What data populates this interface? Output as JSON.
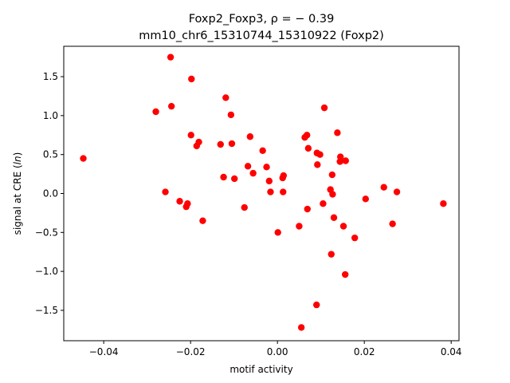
{
  "chart_data": {
    "type": "scatter",
    "title_line1": "Foxp2_Foxp3, ρ = − 0.39",
    "title_line2": "mm10_chr6_15310744_15310922 (Foxp2)",
    "xlabel": "motif activity",
    "ylabel": "signal at CRE (ln)",
    "xlim": [
      -0.0492,
      0.0418
    ],
    "ylim": [
      -1.89,
      1.89
    ],
    "xticks": [
      {
        "value": -0.04,
        "label": "−0.04"
      },
      {
        "value": -0.02,
        "label": "−0.02"
      },
      {
        "value": 0.0,
        "label": "0.00"
      },
      {
        "value": 0.02,
        "label": "0.02"
      },
      {
        "value": 0.04,
        "label": "0.04"
      }
    ],
    "yticks": [
      {
        "value": 1.5,
        "label": "1.5"
      },
      {
        "value": 1.0,
        "label": "1.0"
      },
      {
        "value": 0.5,
        "label": "0.5"
      },
      {
        "value": 0.0,
        "label": "0.0"
      },
      {
        "value": -0.5,
        "label": "−0.5"
      },
      {
        "value": -1.0,
        "label": "−1.0"
      },
      {
        "value": -1.5,
        "label": "−1.5"
      }
    ],
    "grid": false,
    "marker_color": "#ff0000",
    "points": [
      {
        "x": -0.0447,
        "y": 0.45
      },
      {
        "x": -0.028,
        "y": 1.05
      },
      {
        "x": -0.0258,
        "y": 0.02
      },
      {
        "x": -0.0246,
        "y": 1.75
      },
      {
        "x": -0.0244,
        "y": 1.12
      },
      {
        "x": -0.0225,
        "y": -0.1
      },
      {
        "x": -0.021,
        "y": -0.17
      },
      {
        "x": -0.0207,
        "y": -0.13
      },
      {
        "x": -0.0198,
        "y": 1.47
      },
      {
        "x": -0.0199,
        "y": 0.75
      },
      {
        "x": -0.0186,
        "y": 0.61
      },
      {
        "x": -0.0181,
        "y": 0.66
      },
      {
        "x": -0.0172,
        "y": -0.35
      },
      {
        "x": -0.0131,
        "y": 0.63
      },
      {
        "x": -0.0124,
        "y": 0.21
      },
      {
        "x": -0.0119,
        "y": 1.23
      },
      {
        "x": -0.0107,
        "y": 1.01
      },
      {
        "x": -0.0105,
        "y": 0.64
      },
      {
        "x": -0.0099,
        "y": 0.19
      },
      {
        "x": -0.0076,
        "y": -0.18
      },
      {
        "x": -0.0068,
        "y": 0.35
      },
      {
        "x": -0.0063,
        "y": 0.73
      },
      {
        "x": -0.0056,
        "y": 0.26
      },
      {
        "x": -0.0034,
        "y": 0.55
      },
      {
        "x": -0.0025,
        "y": 0.34
      },
      {
        "x": -0.0019,
        "y": 0.16
      },
      {
        "x": -0.0016,
        "y": 0.02
      },
      {
        "x": 0.0001,
        "y": -0.5
      },
      {
        "x": 0.0012,
        "y": 0.2
      },
      {
        "x": 0.0014,
        "y": 0.23
      },
      {
        "x": 0.0013,
        "y": 0.02
      },
      {
        "x": 0.005,
        "y": -0.42
      },
      {
        "x": 0.0055,
        "y": -1.72
      },
      {
        "x": 0.0063,
        "y": 0.72
      },
      {
        "x": 0.0068,
        "y": 0.75
      },
      {
        "x": 0.0069,
        "y": -0.2
      },
      {
        "x": 0.0071,
        "y": 0.58
      },
      {
        "x": 0.009,
        "y": -1.43
      },
      {
        "x": 0.0091,
        "y": 0.52
      },
      {
        "x": 0.0092,
        "y": 0.37
      },
      {
        "x": 0.0098,
        "y": 0.5
      },
      {
        "x": 0.0105,
        "y": -0.13
      },
      {
        "x": 0.0108,
        "y": 1.1
      },
      {
        "x": 0.0122,
        "y": 0.05
      },
      {
        "x": 0.0124,
        "y": -0.78
      },
      {
        "x": 0.0126,
        "y": 0.24
      },
      {
        "x": 0.0127,
        "y": -0.01
      },
      {
        "x": 0.013,
        "y": -0.31
      },
      {
        "x": 0.0138,
        "y": 0.78
      },
      {
        "x": 0.0144,
        "y": 0.41
      },
      {
        "x": 0.0145,
        "y": 0.47
      },
      {
        "x": 0.0152,
        "y": -0.42
      },
      {
        "x": 0.0156,
        "y": -1.04
      },
      {
        "x": 0.0157,
        "y": 0.42
      },
      {
        "x": 0.0178,
        "y": -0.57
      },
      {
        "x": 0.0203,
        "y": -0.07
      },
      {
        "x": 0.0245,
        "y": 0.08
      },
      {
        "x": 0.0265,
        "y": -0.39
      },
      {
        "x": 0.0275,
        "y": 0.02
      },
      {
        "x": 0.0382,
        "y": -0.13
      }
    ]
  }
}
